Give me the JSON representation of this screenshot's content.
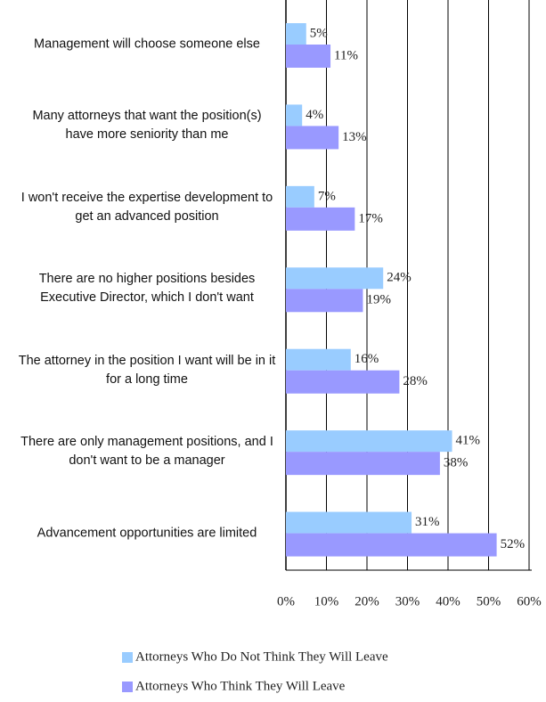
{
  "chart_data": {
    "type": "hbar",
    "categories": [
      "Management will choose someone else",
      "Many attorneys that want the position(s) have more seniority than me",
      "I won't receive the expertise development to get an advanced position",
      "There are no higher positions besides Executive Director, which I don't want",
      "The attorney in the position I want will be in it for a long time",
      "There are only management positions, and I don't want to be a manager",
      "Advancement opportunities are limited"
    ],
    "series": [
      {
        "name": "Attorneys Who Do Not Think They Will Leave",
        "color": "#99ccff",
        "values": [
          5,
          4,
          7,
          24,
          16,
          41,
          31
        ],
        "value_labels": [
          "5%",
          "4%",
          "7%",
          "24%",
          "16%",
          "41%",
          "31%"
        ]
      },
      {
        "name": "Attorneys Who Think They Will Leave",
        "color": "#9999ff",
        "values": [
          11,
          13,
          17,
          19,
          28,
          38,
          52
        ],
        "value_labels": [
          "11%",
          "13%",
          "17%",
          "19%",
          "28%",
          "38%",
          "52%"
        ]
      }
    ],
    "xlim": [
      0,
      60
    ],
    "xticks": [
      {
        "value": 0,
        "label": "0%"
      },
      {
        "value": 10,
        "label": "10%"
      },
      {
        "value": 20,
        "label": "20%"
      },
      {
        "value": 30,
        "label": "30%"
      },
      {
        "value": 40,
        "label": "40%"
      },
      {
        "value": 50,
        "label": "50%"
      },
      {
        "value": 60,
        "label": "60%"
      }
    ],
    "grid": true,
    "legend": "bottom"
  }
}
